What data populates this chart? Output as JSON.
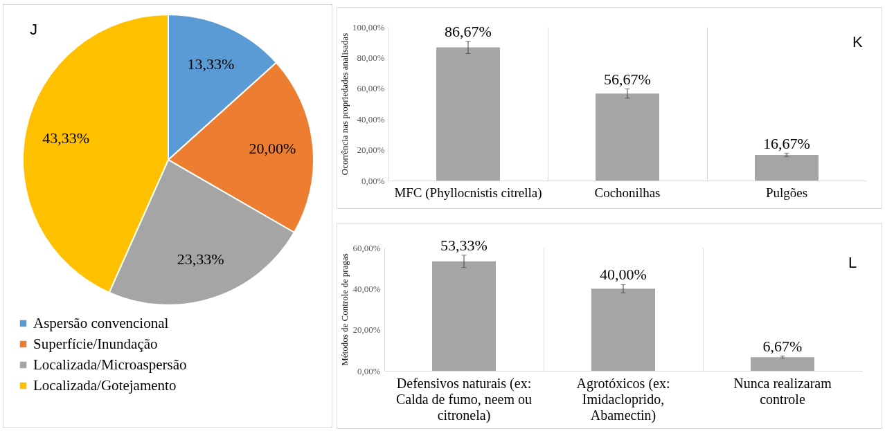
{
  "chart_data": [
    {
      "type": "pie",
      "categories": [
        "Aspersão convencional",
        "Superfície/Inundação",
        "Localizada/Microaspersão",
        "Localizada/Gotejamento"
      ],
      "values": [
        13.33,
        20.0,
        23.33,
        43.33
      ],
      "colors": [
        "#5b9bd5",
        "#ed7d31",
        "#a5a5a5",
        "#ffc000"
      ],
      "value_labels": [
        "13,33%",
        "20,00%",
        "23,33%",
        "43,33%"
      ],
      "legend": "bottom",
      "annotations": [
        "J"
      ]
    },
    {
      "type": "bar",
      "categories": [
        "MFC (Phyllocnistis citrella)",
        "Cochonilhas",
        "Pulgões"
      ],
      "values": [
        86.67,
        56.67,
        16.67
      ],
      "errors": [
        4,
        3,
        1
      ],
      "color": "#a5a5a5",
      "value_labels": [
        "86,67%",
        "56,67%",
        "16,67%"
      ],
      "ylabel": "Ocorrência nas propriedades analisadas",
      "ylim": [
        0,
        100
      ],
      "yticks": [
        {
          "value": 0,
          "label": "0,00%"
        },
        {
          "value": 20,
          "label": "20,00%"
        },
        {
          "value": 40,
          "label": "40,00%"
        },
        {
          "value": 60,
          "label": "60,00%"
        },
        {
          "value": 80,
          "label": "80,00%"
        },
        {
          "value": 100,
          "label": "100,00%"
        }
      ],
      "grid": "x",
      "annotations": [
        "K"
      ]
    },
    {
      "type": "bar",
      "categories": [
        "Defensivos naturais (ex: Calda de fumo, neem ou citronela)",
        "Agrotóxicos (ex: Imidacloprido, Abamectin)",
        "Nunca realizaram controle"
      ],
      "values": [
        53.33,
        40.0,
        6.67
      ],
      "errors": [
        3,
        2,
        0.5
      ],
      "color": "#a5a5a5",
      "value_labels": [
        "53,33%",
        "40,00%",
        "6,67%"
      ],
      "ylabel": "Métodos de Controle de pragas",
      "ylim": [
        0,
        60
      ],
      "yticks": [
        {
          "value": 0,
          "label": "0,00%"
        },
        {
          "value": 20,
          "label": "20,00%"
        },
        {
          "value": 40,
          "label": "40,00%"
        },
        {
          "value": 60,
          "label": "60,00%"
        }
      ],
      "grid": "x",
      "annotations": [
        "L"
      ]
    }
  ]
}
